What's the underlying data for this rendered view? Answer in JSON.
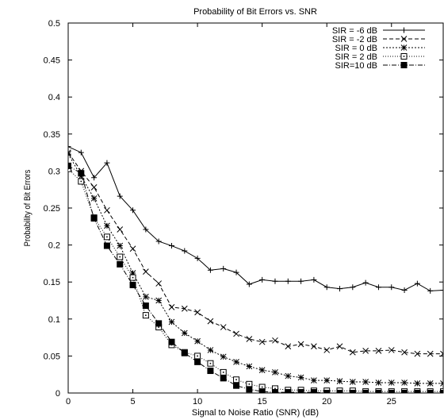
{
  "chart_data": {
    "type": "line",
    "title": "Probability of Bit Errors vs. SNR",
    "xlabel": "Signal to Noise Ratio (SNR) (dB)",
    "ylabel": "Probability of Bit Errors",
    "xlim": [
      0,
      29
    ],
    "ylim": [
      0,
      0.5
    ],
    "xticks": [
      0,
      5,
      10,
      15,
      20,
      25
    ],
    "yticks": [
      0,
      0.05,
      0.1,
      0.15,
      0.2,
      0.25,
      0.3,
      0.35,
      0.4,
      0.45,
      0.5
    ],
    "ytick_labels": [
      "0",
      "0.05",
      "0.1",
      "0.15",
      "0.2",
      "0.25",
      "0.3",
      "0.35",
      "0.4",
      "0.45",
      "0.5"
    ],
    "grid": false,
    "legend_position": "top-right",
    "x": [
      0,
      1,
      2,
      3,
      4,
      5,
      6,
      7,
      8,
      9,
      10,
      11,
      12,
      13,
      14,
      15,
      16,
      17,
      18,
      19,
      20,
      21,
      22,
      23,
      24,
      25,
      26,
      27,
      28,
      29
    ],
    "series": [
      {
        "name": "SIR = -6 dB",
        "marker": "plus",
        "dash": "",
        "values": [
          0.333,
          0.325,
          0.291,
          0.311,
          0.266,
          0.247,
          0.221,
          0.205,
          0.199,
          0.192,
          0.182,
          0.166,
          0.168,
          0.163,
          0.147,
          0.153,
          0.151,
          0.151,
          0.151,
          0.153,
          0.143,
          0.141,
          0.143,
          0.149,
          0.143,
          0.143,
          0.139,
          0.148,
          0.138,
          0.139
        ]
      },
      {
        "name": "SIR = -2 dB",
        "marker": "x",
        "dash": "5,3",
        "values": [
          0.325,
          0.3,
          0.278,
          0.247,
          0.221,
          0.195,
          0.164,
          0.148,
          0.116,
          0.114,
          0.109,
          0.097,
          0.089,
          0.08,
          0.073,
          0.069,
          0.071,
          0.063,
          0.066,
          0.063,
          0.058,
          0.063,
          0.055,
          0.057,
          0.057,
          0.058,
          0.055,
          0.053,
          0.053,
          0.053
        ]
      },
      {
        "name": "SIR = 0 dB",
        "marker": "star",
        "dash": "2,2",
        "values": [
          0.323,
          0.293,
          0.263,
          0.226,
          0.199,
          0.162,
          0.13,
          0.125,
          0.096,
          0.081,
          0.07,
          0.058,
          0.049,
          0.042,
          0.036,
          0.031,
          0.028,
          0.023,
          0.021,
          0.017,
          0.017,
          0.016,
          0.015,
          0.015,
          0.014,
          0.014,
          0.014,
          0.013,
          0.013,
          0.013
        ]
      },
      {
        "name": "SIR = 2 dB",
        "marker": "dotted-square",
        "dash": "1,2",
        "values": [
          0.303,
          0.286,
          0.237,
          0.211,
          0.184,
          0.156,
          0.105,
          0.089,
          0.065,
          0.055,
          0.05,
          0.04,
          0.028,
          0.018,
          0.012,
          0.008,
          0.006,
          0.004,
          0.004,
          0.003,
          0.003,
          0.003,
          0.003,
          0.002,
          0.002,
          0.002,
          0.002,
          0.002,
          0.002,
          0.002
        ]
      },
      {
        "name": "SIR=10 dB",
        "marker": "filled-square",
        "dash": "6,2,1,2",
        "values": [
          0.307,
          0.297,
          0.236,
          0.199,
          0.174,
          0.146,
          0.118,
          0.094,
          0.069,
          0.054,
          0.042,
          0.03,
          0.02,
          0.01,
          0.005,
          0.002,
          0.001,
          0.001,
          0.001,
          0.001,
          0.0,
          0.0,
          0.0,
          0.0,
          0.0,
          0.0,
          0.0,
          0.0,
          0.0,
          0.0
        ]
      }
    ]
  }
}
